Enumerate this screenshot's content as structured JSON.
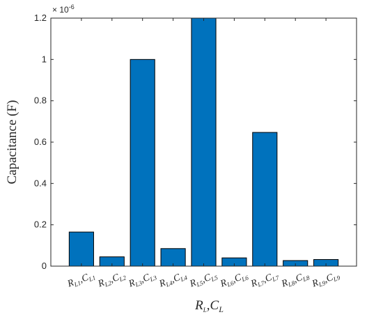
{
  "chart_data": {
    "type": "bar",
    "categories": [
      {
        "a": "R",
        "a_sub": "L1",
        "b": "C",
        "b_sub": "L1"
      },
      {
        "a": "R",
        "a_sub": "L2",
        "b": "C",
        "b_sub": "L2"
      },
      {
        "a": "R",
        "a_sub": "L3",
        "b": "C",
        "b_sub": "L3"
      },
      {
        "a": "R",
        "a_sub": "L4",
        "b": "C",
        "b_sub": "L4"
      },
      {
        "a": "R",
        "a_sub": "L5",
        "b": "C",
        "b_sub": "L5"
      },
      {
        "a": "R",
        "a_sub": "L6",
        "b": "C",
        "b_sub": "L6"
      },
      {
        "a": "R",
        "a_sub": "L7",
        "b": "C",
        "b_sub": "L7"
      },
      {
        "a": "R",
        "a_sub": "L8",
        "b": "C",
        "b_sub": "L8"
      },
      {
        "a": "R",
        "a_sub": "L9",
        "b": "C",
        "b_sub": "L9"
      }
    ],
    "values": [
      1.65e-07,
      4.5e-08,
      1e-06,
      8.5e-08,
      1.2e-06,
      4e-08,
      6.47e-07,
      2.7e-08,
      3.2e-08
    ],
    "ylabel": "Capacitance (F)",
    "xlabel": {
      "a": "R",
      "a_sub": "L",
      "b": "C",
      "b_sub": "L"
    },
    "ylim": [
      0,
      1.2e-06
    ],
    "yticks": [
      0,
      2e-07,
      4e-07,
      6e-07,
      8e-07,
      1e-06,
      1.2e-06
    ],
    "ytick_labels": [
      "0",
      "0.2",
      "0.4",
      "0.6",
      "0.8",
      "1",
      "1.2"
    ],
    "y_exponent_label": "× 10",
    "y_exponent_power": "-6",
    "bar_color": "#0072BD",
    "grid": false
  }
}
